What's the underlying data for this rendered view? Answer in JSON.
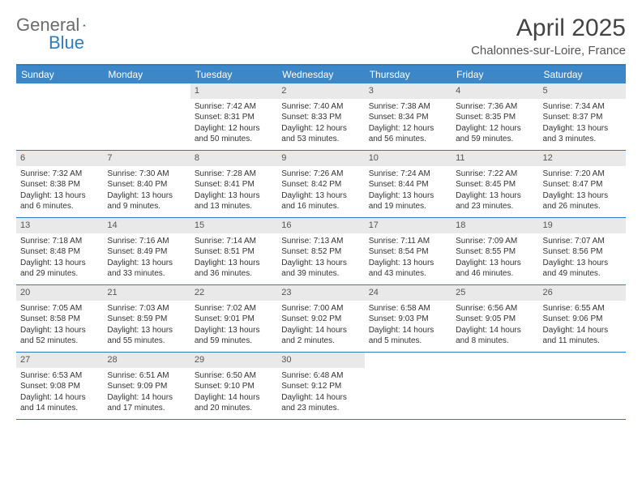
{
  "logo": {
    "part1": "General",
    "part2": "Blue"
  },
  "title": "April 2025",
  "location": "Chalonnes-sur-Loire, France",
  "colors": {
    "header_bg": "#3b87c8",
    "border": "#2f7bbf",
    "daynum_bg": "#e9e9e9",
    "logo_gray": "#6b6b6b",
    "logo_blue": "#2f7bbf"
  },
  "weekdays": [
    "Sunday",
    "Monday",
    "Tuesday",
    "Wednesday",
    "Thursday",
    "Friday",
    "Saturday"
  ],
  "weeks": [
    [
      null,
      null,
      {
        "n": 1,
        "sr": "7:42 AM",
        "ss": "8:31 PM",
        "dl": "12 hours and 50 minutes."
      },
      {
        "n": 2,
        "sr": "7:40 AM",
        "ss": "8:33 PM",
        "dl": "12 hours and 53 minutes."
      },
      {
        "n": 3,
        "sr": "7:38 AM",
        "ss": "8:34 PM",
        "dl": "12 hours and 56 minutes."
      },
      {
        "n": 4,
        "sr": "7:36 AM",
        "ss": "8:35 PM",
        "dl": "12 hours and 59 minutes."
      },
      {
        "n": 5,
        "sr": "7:34 AM",
        "ss": "8:37 PM",
        "dl": "13 hours and 3 minutes."
      }
    ],
    [
      {
        "n": 6,
        "sr": "7:32 AM",
        "ss": "8:38 PM",
        "dl": "13 hours and 6 minutes."
      },
      {
        "n": 7,
        "sr": "7:30 AM",
        "ss": "8:40 PM",
        "dl": "13 hours and 9 minutes."
      },
      {
        "n": 8,
        "sr": "7:28 AM",
        "ss": "8:41 PM",
        "dl": "13 hours and 13 minutes."
      },
      {
        "n": 9,
        "sr": "7:26 AM",
        "ss": "8:42 PM",
        "dl": "13 hours and 16 minutes."
      },
      {
        "n": 10,
        "sr": "7:24 AM",
        "ss": "8:44 PM",
        "dl": "13 hours and 19 minutes."
      },
      {
        "n": 11,
        "sr": "7:22 AM",
        "ss": "8:45 PM",
        "dl": "13 hours and 23 minutes."
      },
      {
        "n": 12,
        "sr": "7:20 AM",
        "ss": "8:47 PM",
        "dl": "13 hours and 26 minutes."
      }
    ],
    [
      {
        "n": 13,
        "sr": "7:18 AM",
        "ss": "8:48 PM",
        "dl": "13 hours and 29 minutes."
      },
      {
        "n": 14,
        "sr": "7:16 AM",
        "ss": "8:49 PM",
        "dl": "13 hours and 33 minutes."
      },
      {
        "n": 15,
        "sr": "7:14 AM",
        "ss": "8:51 PM",
        "dl": "13 hours and 36 minutes."
      },
      {
        "n": 16,
        "sr": "7:13 AM",
        "ss": "8:52 PM",
        "dl": "13 hours and 39 minutes."
      },
      {
        "n": 17,
        "sr": "7:11 AM",
        "ss": "8:54 PM",
        "dl": "13 hours and 43 minutes."
      },
      {
        "n": 18,
        "sr": "7:09 AM",
        "ss": "8:55 PM",
        "dl": "13 hours and 46 minutes."
      },
      {
        "n": 19,
        "sr": "7:07 AM",
        "ss": "8:56 PM",
        "dl": "13 hours and 49 minutes."
      }
    ],
    [
      {
        "n": 20,
        "sr": "7:05 AM",
        "ss": "8:58 PM",
        "dl": "13 hours and 52 minutes."
      },
      {
        "n": 21,
        "sr": "7:03 AM",
        "ss": "8:59 PM",
        "dl": "13 hours and 55 minutes."
      },
      {
        "n": 22,
        "sr": "7:02 AM",
        "ss": "9:01 PM",
        "dl": "13 hours and 59 minutes."
      },
      {
        "n": 23,
        "sr": "7:00 AM",
        "ss": "9:02 PM",
        "dl": "14 hours and 2 minutes."
      },
      {
        "n": 24,
        "sr": "6:58 AM",
        "ss": "9:03 PM",
        "dl": "14 hours and 5 minutes."
      },
      {
        "n": 25,
        "sr": "6:56 AM",
        "ss": "9:05 PM",
        "dl": "14 hours and 8 minutes."
      },
      {
        "n": 26,
        "sr": "6:55 AM",
        "ss": "9:06 PM",
        "dl": "14 hours and 11 minutes."
      }
    ],
    [
      {
        "n": 27,
        "sr": "6:53 AM",
        "ss": "9:08 PM",
        "dl": "14 hours and 14 minutes."
      },
      {
        "n": 28,
        "sr": "6:51 AM",
        "ss": "9:09 PM",
        "dl": "14 hours and 17 minutes."
      },
      {
        "n": 29,
        "sr": "6:50 AM",
        "ss": "9:10 PM",
        "dl": "14 hours and 20 minutes."
      },
      {
        "n": 30,
        "sr": "6:48 AM",
        "ss": "9:12 PM",
        "dl": "14 hours and 23 minutes."
      },
      null,
      null,
      null
    ]
  ],
  "labels": {
    "sunrise": "Sunrise:",
    "sunset": "Sunset:",
    "daylight": "Daylight:"
  }
}
